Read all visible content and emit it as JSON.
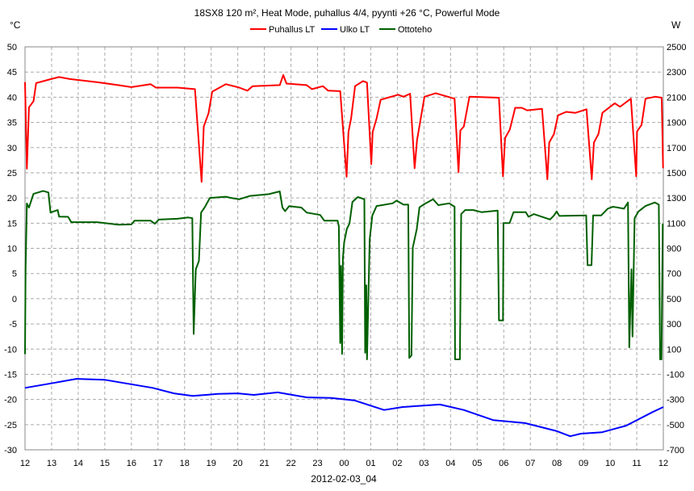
{
  "chart_data": {
    "type": "line",
    "title": "18SX8 120 m², Heat Mode, puhallus 4/4, pyynti +26 °C, Powerful Mode",
    "xlabel": "2012-02-03_04",
    "ylabel_left": "°C",
    "ylabel_right": "W",
    "x_unit": "hours since 12:00",
    "xlim": [
      0,
      24
    ],
    "ylim_left": [
      -30,
      50
    ],
    "ylim_right": [
      -700,
      2500
    ],
    "grid": true,
    "legend_position": "top-center",
    "x_tick_labels": [
      "12",
      "13",
      "14",
      "15",
      "16",
      "17",
      "18",
      "19",
      "20",
      "21",
      "22",
      "23",
      "00",
      "01",
      "02",
      "03",
      "04",
      "05",
      "06",
      "07",
      "08",
      "09",
      "10",
      "11",
      "12"
    ],
    "y_left_ticks": [
      50,
      45,
      40,
      35,
      30,
      25,
      20,
      15,
      10,
      5,
      0,
      -5,
      -10,
      -15,
      -20,
      -25,
      -30
    ],
    "y_right_ticks": [
      2500,
      2300,
      2100,
      1900,
      1700,
      1500,
      1300,
      1100,
      900,
      700,
      500,
      300,
      100,
      -100,
      -300,
      -500,
      -700
    ],
    "series": [
      {
        "name": "Puhallus LT",
        "axis": "left",
        "color": "#ff0000",
        "points": [
          [
            0,
            43
          ],
          [
            0.07,
            25.8
          ],
          [
            0.15,
            38
          ],
          [
            0.32,
            39.2
          ],
          [
            0.42,
            42.8
          ],
          [
            0.98,
            43.6
          ],
          [
            1.28,
            44
          ],
          [
            1.69,
            43.6
          ],
          [
            2.7,
            43
          ],
          [
            3.5,
            42.4
          ],
          [
            4.0,
            42
          ],
          [
            4.72,
            42.6
          ],
          [
            4.92,
            41.9
          ],
          [
            5.73,
            41.9
          ],
          [
            6.39,
            41.6
          ],
          [
            6.64,
            23.2
          ],
          [
            6.72,
            34.2
          ],
          [
            6.9,
            36.8
          ],
          [
            7.04,
            41.1
          ],
          [
            7.55,
            42.6
          ],
          [
            8.06,
            41.9
          ],
          [
            8.36,
            41.3
          ],
          [
            8.56,
            42.2
          ],
          [
            9.58,
            42.4
          ],
          [
            9.71,
            44.4
          ],
          [
            9.83,
            42.7
          ],
          [
            10.59,
            42.4
          ],
          [
            10.79,
            41.6
          ],
          [
            11.2,
            42.2
          ],
          [
            11.4,
            41.3
          ],
          [
            11.85,
            41.2
          ],
          [
            12.09,
            24.2
          ],
          [
            12.16,
            33.1
          ],
          [
            12.26,
            35.8
          ],
          [
            12.41,
            42.2
          ],
          [
            12.71,
            43.2
          ],
          [
            12.86,
            42.9
          ],
          [
            13.02,
            26.7
          ],
          [
            13.07,
            33.1
          ],
          [
            13.22,
            35.8
          ],
          [
            13.37,
            39.5
          ],
          [
            14.03,
            40.5
          ],
          [
            14.23,
            40.1
          ],
          [
            14.48,
            40.7
          ],
          [
            14.65,
            25.9
          ],
          [
            14.74,
            31.5
          ],
          [
            15.02,
            40.1
          ],
          [
            15.44,
            40.8
          ],
          [
            16.15,
            39.7
          ],
          [
            16.3,
            25.1
          ],
          [
            16.37,
            33.4
          ],
          [
            16.5,
            34.2
          ],
          [
            16.71,
            40.1
          ],
          [
            17.82,
            39.9
          ],
          [
            17.97,
            24.3
          ],
          [
            18.05,
            31.9
          ],
          [
            18.23,
            33.6
          ],
          [
            18.43,
            37.9
          ],
          [
            18.68,
            37.9
          ],
          [
            18.88,
            37.4
          ],
          [
            19.44,
            37.7
          ],
          [
            19.64,
            23.7
          ],
          [
            19.71,
            31
          ],
          [
            19.89,
            32.7
          ],
          [
            20.04,
            36.4
          ],
          [
            20.35,
            37.1
          ],
          [
            20.7,
            36.9
          ],
          [
            21.11,
            37.6
          ],
          [
            21.31,
            23.7
          ],
          [
            21.39,
            31
          ],
          [
            21.56,
            32.7
          ],
          [
            21.71,
            36.9
          ],
          [
            22.17,
            38.8
          ],
          [
            22.37,
            38.1
          ],
          [
            22.78,
            39.7
          ],
          [
            22.98,
            24.3
          ],
          [
            23.01,
            33.2
          ],
          [
            23.18,
            34.5
          ],
          [
            23.33,
            39.7
          ],
          [
            23.69,
            40.1
          ],
          [
            23.94,
            39.9
          ],
          [
            23.99,
            25.9
          ]
        ]
      },
      {
        "name": "Ulko LT",
        "axis": "left",
        "color": "#0000ff",
        "points": [
          [
            0,
            -17.7
          ],
          [
            0.88,
            -16.9
          ],
          [
            1.94,
            -15.9
          ],
          [
            3.0,
            -16.1
          ],
          [
            3.9,
            -16.9
          ],
          [
            4.8,
            -17.7
          ],
          [
            5.6,
            -18.8
          ],
          [
            6.3,
            -19.3
          ],
          [
            7.25,
            -18.9
          ],
          [
            8.0,
            -18.8
          ],
          [
            8.6,
            -19.1
          ],
          [
            9.5,
            -18.6
          ],
          [
            10.6,
            -19.6
          ],
          [
            11.5,
            -19.7
          ],
          [
            12.4,
            -20.2
          ],
          [
            13.5,
            -22.1
          ],
          [
            14.2,
            -21.5
          ],
          [
            15.6,
            -21
          ],
          [
            16.5,
            -22.1
          ],
          [
            17.6,
            -24.1
          ],
          [
            18.8,
            -24.7
          ],
          [
            20.0,
            -26.3
          ],
          [
            20.5,
            -27.3
          ],
          [
            20.9,
            -26.8
          ],
          [
            21.7,
            -26.5
          ],
          [
            22.6,
            -25.2
          ],
          [
            23.6,
            -22.5
          ],
          [
            24,
            -21.5
          ]
        ]
      },
      {
        "name": "Ottoteho",
        "axis": "right",
        "color": "#006000",
        "points": [
          [
            0,
            60
          ],
          [
            0.02,
            732
          ],
          [
            0.07,
            1256
          ],
          [
            0.15,
            1224
          ],
          [
            0.32,
            1332
          ],
          [
            0.68,
            1356
          ],
          [
            0.88,
            1344
          ],
          [
            0.96,
            1184
          ],
          [
            1.23,
            1204
          ],
          [
            1.28,
            1152
          ],
          [
            1.62,
            1150
          ],
          [
            1.74,
            1108
          ],
          [
            2.7,
            1108
          ],
          [
            3.51,
            1088
          ],
          [
            4.0,
            1090
          ],
          [
            4.12,
            1120
          ],
          [
            4.72,
            1120
          ],
          [
            4.88,
            1095
          ],
          [
            5.03,
            1128
          ],
          [
            5.73,
            1135
          ],
          [
            6.14,
            1145
          ],
          [
            6.29,
            1140
          ],
          [
            6.34,
            220
          ],
          [
            6.42,
            732
          ],
          [
            6.54,
            800
          ],
          [
            6.62,
            1184
          ],
          [
            6.75,
            1224
          ],
          [
            6.95,
            1300
          ],
          [
            7.55,
            1310
          ],
          [
            7.75,
            1300
          ],
          [
            8.06,
            1290
          ],
          [
            8.46,
            1316
          ],
          [
            9.17,
            1330
          ],
          [
            9.58,
            1352
          ],
          [
            9.68,
            1224
          ],
          [
            9.78,
            1195
          ],
          [
            9.93,
            1235
          ],
          [
            10.39,
            1224
          ],
          [
            10.59,
            1184
          ],
          [
            11.1,
            1165
          ],
          [
            11.25,
            1120
          ],
          [
            11.75,
            1120
          ],
          [
            11.8,
            1076
          ],
          [
            11.85,
            148
          ],
          [
            11.88,
            760
          ],
          [
            11.92,
            61
          ],
          [
            11.95,
            819
          ],
          [
            12.0,
            948
          ],
          [
            12.1,
            1054
          ],
          [
            12.2,
            1097
          ],
          [
            12.31,
            1268
          ],
          [
            12.51,
            1307
          ],
          [
            12.76,
            1290
          ],
          [
            12.79,
            71
          ],
          [
            12.83,
            606
          ],
          [
            12.86,
            18
          ],
          [
            12.96,
            969
          ],
          [
            13.06,
            1161
          ],
          [
            13.22,
            1236
          ],
          [
            13.82,
            1257
          ],
          [
            13.97,
            1279
          ],
          [
            14.23,
            1247
          ],
          [
            14.41,
            1247
          ],
          [
            14.43,
            563
          ],
          [
            14.45,
            29
          ],
          [
            14.53,
            50
          ],
          [
            14.58,
            905
          ],
          [
            14.73,
            1054
          ],
          [
            14.83,
            1225
          ],
          [
            14.98,
            1247
          ],
          [
            15.34,
            1290
          ],
          [
            15.54,
            1243
          ],
          [
            15.95,
            1257
          ],
          [
            16.15,
            1230
          ],
          [
            16.17,
            18
          ],
          [
            16.35,
            18
          ],
          [
            16.4,
            1172
          ],
          [
            16.55,
            1204
          ],
          [
            16.86,
            1204
          ],
          [
            17.16,
            1187
          ],
          [
            17.77,
            1200
          ],
          [
            17.82,
            328
          ],
          [
            17.97,
            328
          ],
          [
            17.99,
            1101
          ],
          [
            18.22,
            1101
          ],
          [
            18.37,
            1187
          ],
          [
            18.83,
            1187
          ],
          [
            18.93,
            1151
          ],
          [
            19.13,
            1172
          ],
          [
            19.74,
            1129
          ],
          [
            19.89,
            1161
          ],
          [
            19.99,
            1193
          ],
          [
            20.09,
            1157
          ],
          [
            21.1,
            1161
          ],
          [
            21.15,
            766
          ],
          [
            21.3,
            766
          ],
          [
            21.36,
            1161
          ],
          [
            21.66,
            1161
          ],
          [
            21.91,
            1215
          ],
          [
            22.11,
            1230
          ],
          [
            22.52,
            1215
          ],
          [
            22.67,
            1264
          ],
          [
            22.72,
            114
          ],
          [
            22.8,
            734
          ],
          [
            22.84,
            200
          ],
          [
            22.92,
            1140
          ],
          [
            23.07,
            1193
          ],
          [
            23.33,
            1236
          ],
          [
            23.68,
            1264
          ],
          [
            23.83,
            1247
          ],
          [
            23.88,
            18
          ],
          [
            23.93,
            18
          ],
          [
            23.98,
            1097
          ]
        ]
      }
    ]
  }
}
